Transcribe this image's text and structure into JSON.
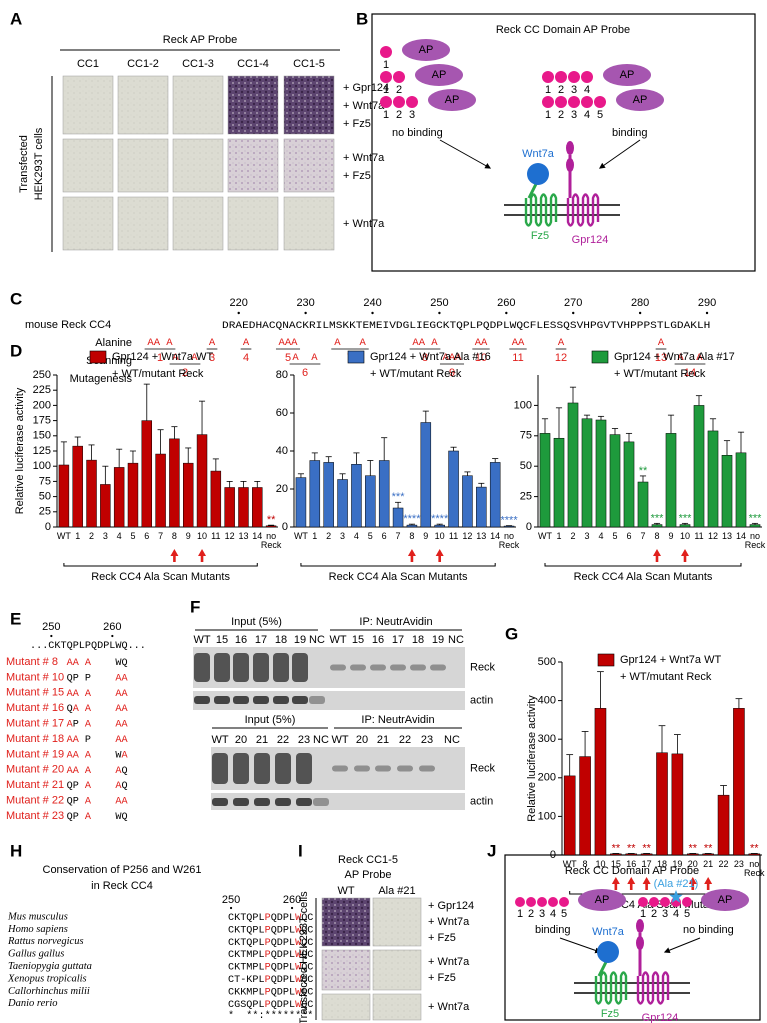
{
  "panel_labels": [
    "A",
    "B",
    "C",
    "D",
    "E",
    "F",
    "G",
    "H",
    "I",
    "J"
  ],
  "panel_a": {
    "title": "Reck AP Probe",
    "columns": [
      "CC1",
      "CC1-2",
      "CC1-3",
      "CC1-4",
      "CC1-5"
    ],
    "row_labels": [
      [
        "+ Gpr124",
        "+ Wnt7a",
        "+ Fz5"
      ],
      [
        "+ Wnt7a",
        "+ Fz5"
      ],
      [
        "+ Wnt7a"
      ]
    ],
    "side_label": [
      "Transfected",
      "HEK293T cells"
    ]
  },
  "panel_b": {
    "title": "Reck CC Domain AP Probe",
    "probe_label": "AP",
    "domains": [
      [
        "1"
      ],
      [
        "1",
        "2"
      ],
      [
        "1",
        "2",
        "3"
      ],
      [
        "1",
        "2",
        "3",
        "4"
      ],
      [
        "1",
        "2",
        "3",
        "4",
        "5"
      ]
    ],
    "no_binding": "no binding",
    "binding": "binding",
    "wnt7a": "Wnt7a",
    "fz5": "Fz5",
    "gpr124": "Gpr124"
  },
  "panel_c": {
    "label": "mouse Reck CC4",
    "ticks": [
      220,
      230,
      240,
      250,
      260,
      270,
      280,
      290
    ],
    "sequence": "DRAEDHACQNACKRILMSKKTEMEIVDGLIEGCKTQPLPQDPLWQCFLESSQSVHPGVTVHPPPSTLGDAKLH",
    "side_label": [
      "Alanine",
      "Scanning",
      "Mutagenesis"
    ],
    "mutants": [
      {
        "alanines": "AA A",
        "label": "1"
      },
      {
        "alanines": "A  A",
        "label": "2"
      },
      {
        "alanines": "A",
        "label": "3"
      },
      {
        "alanines": "A",
        "label": "4"
      },
      {
        "alanines": "AAA",
        "label": "5"
      },
      {
        "alanines": "A  A",
        "label": "6"
      },
      {
        "alanines": "A   A",
        "label": "7"
      },
      {
        "alanines": "AA A",
        "label": "8"
      },
      {
        "alanines": "AAA",
        "label": "9"
      },
      {
        "alanines": "AA",
        "label": "10"
      },
      {
        "alanines": "AA",
        "label": "11"
      },
      {
        "alanines": "A",
        "label": "12"
      },
      {
        "alanines": "A",
        "label": "13"
      },
      {
        "alanines": "A  A",
        "label": "14"
      }
    ]
  },
  "chart_data": [
    {
      "type": "bar",
      "categories": [
        "WT",
        "1",
        "2",
        "3",
        "4",
        "5",
        "6",
        "7",
        "8",
        "9",
        "10",
        "11",
        "12",
        "13",
        "14",
        "no Reck"
      ],
      "series": [
        {
          "name": "Gpr124 + Wnt7a WT",
          "color": "#c00000",
          "values": [
            102,
            133,
            110,
            70,
            98,
            105,
            175,
            120,
            145,
            105,
            152,
            92,
            65,
            65,
            65,
            2
          ],
          "errors": [
            38,
            15,
            25,
            30,
            30,
            20,
            60,
            40,
            20,
            25,
            55,
            20,
            10,
            10,
            10,
            1
          ]
        }
      ],
      "legend_note": "+ WT/mutant Reck",
      "ylabel": "Relative luciferase activity",
      "xlabel": "Reck CC4 Ala Scan Mutants",
      "ylim": [
        0,
        250
      ],
      "yticks": [
        0,
        25,
        50,
        75,
        100,
        125,
        150,
        175,
        200,
        225,
        250
      ],
      "annotations": [
        null,
        null,
        null,
        null,
        null,
        null,
        null,
        null,
        null,
        null,
        null,
        null,
        null,
        null,
        null,
        "**"
      ]
    },
    {
      "type": "bar",
      "categories": [
        "WT",
        "1",
        "2",
        "3",
        "4",
        "5",
        "6",
        "7",
        "8",
        "9",
        "10",
        "11",
        "12",
        "13",
        "14",
        "no Reck"
      ],
      "series": [
        {
          "name": "Gpr124 + Wnt7a Ala #16",
          "color": "#3a6fc4",
          "values": [
            26,
            35,
            34,
            25,
            33,
            27,
            35,
            10,
            1,
            55,
            1,
            40,
            27,
            21,
            34,
            0.5
          ],
          "errors": [
            2,
            4,
            3,
            3,
            6,
            8,
            12,
            3,
            0.5,
            6,
            0.5,
            2,
            2,
            2,
            2,
            0.2
          ]
        }
      ],
      "legend_note": "+ WT/mutant Reck",
      "xlabel": "Reck CC4 Ala Scan Mutants",
      "ylim": [
        0,
        80
      ],
      "yticks": [
        0,
        20,
        40,
        60,
        80
      ],
      "annotations": [
        null,
        null,
        null,
        null,
        null,
        null,
        null,
        "***",
        "****",
        null,
        "****",
        null,
        null,
        null,
        null,
        "****"
      ]
    },
    {
      "type": "bar",
      "categories": [
        "WT",
        "1",
        "2",
        "3",
        "4",
        "5",
        "6",
        "7",
        "8",
        "9",
        "10",
        "11",
        "12",
        "13",
        "14",
        "no Reck"
      ],
      "series": [
        {
          "name": "Gpr124 + Wnt7a Ala #17",
          "color": "#1e9a3c",
          "values": [
            77,
            73,
            102,
            89,
            88,
            76,
            70,
            37,
            2,
            77,
            2,
            100,
            79,
            59,
            61,
            2
          ],
          "errors": [
            12,
            25,
            13,
            3,
            3,
            5,
            7,
            5,
            1,
            15,
            1,
            8,
            10,
            12,
            17,
            1
          ]
        }
      ],
      "legend_note": "+ WT/mutant Reck",
      "xlabel": "Reck CC4 Ala Scan Mutants",
      "ylim": [
        0,
        125
      ],
      "yticks": [
        0,
        25,
        50,
        75,
        100
      ],
      "annotations": [
        null,
        null,
        null,
        null,
        null,
        null,
        null,
        "**",
        "***",
        null,
        "***",
        null,
        null,
        null,
        null,
        "***"
      ]
    },
    {
      "type": "bar",
      "categories": [
        "WT",
        "8",
        "10",
        "15",
        "16",
        "17",
        "18",
        "19",
        "20",
        "21",
        "22",
        "23",
        "no Reck"
      ],
      "series": [
        {
          "name": "Gpr124 + Wnt7a WT",
          "color": "#c00000",
          "values": [
            205,
            255,
            380,
            3,
            3,
            3,
            265,
            262,
            3,
            3,
            155,
            380,
            3
          ],
          "errors": [
            55,
            65,
            95,
            1,
            1,
            1,
            70,
            50,
            1,
            1,
            25,
            25,
            1
          ]
        }
      ],
      "legend_note": "+ WT/mutant Reck",
      "ylabel": "Relative luciferase activity",
      "xlabel": "Reck CC4 Ala Scan Mutants",
      "ylim": [
        0,
        500
      ],
      "yticks": [
        0,
        100,
        200,
        300,
        400,
        500
      ],
      "annotations": [
        null,
        null,
        null,
        "**",
        "**",
        "**",
        null,
        null,
        "**",
        "**",
        null,
        null,
        "**"
      ]
    }
  ],
  "panel_e": {
    "ticks": [
      250,
      260
    ],
    "sequence": "...CKTQPLPQDPLWQ...",
    "mutants": [
      {
        "name": "Mutant # 8",
        "left": "AA A",
        "right": "WQ"
      },
      {
        "name": "Mutant # 10",
        "left": "QP P",
        "right": "AA"
      },
      {
        "name": "Mutant # 15",
        "left": "AA A",
        "right": "AA"
      },
      {
        "name": "Mutant # 16",
        "left": "QA A",
        "right": "AA"
      },
      {
        "name": "Mutant # 17",
        "left": "AP A",
        "right": "AA"
      },
      {
        "name": "Mutant # 18",
        "left": "AA P",
        "right": "AA"
      },
      {
        "name": "Mutant # 19",
        "left": "AA A",
        "right": "WA"
      },
      {
        "name": "Mutant # 20",
        "left": "AA A",
        "right": "AQ"
      },
      {
        "name": "Mutant # 21",
        "left": "QP A",
        "right": "AQ"
      },
      {
        "name": "Mutant # 22",
        "left": "QP A",
        "right": "AA"
      },
      {
        "name": "Mutant # 23",
        "left": "QP A",
        "right": "WQ"
      }
    ]
  },
  "panel_f": {
    "blots": [
      {
        "groups": [
          "Input (5%)",
          "IP: NeutrAvidin"
        ],
        "input_lanes": [
          "WT",
          "15",
          "16",
          "17",
          "18",
          "19",
          "NC"
        ],
        "ip_lanes": [
          "WT",
          "15",
          "16",
          "17",
          "18",
          "19",
          "NC"
        ],
        "bands": [
          "Reck",
          "actin"
        ]
      },
      {
        "groups": [
          "Input (5%)",
          "IP: NeutrAvidin"
        ],
        "input_lanes": [
          "WT",
          "20",
          "21",
          "22",
          "23",
          "NC"
        ],
        "ip_lanes": [
          "WT",
          "20",
          "21",
          "22",
          "23",
          "NC"
        ],
        "bands": [
          "Reck",
          "actin"
        ]
      }
    ]
  },
  "panel_h": {
    "title": [
      "Conservation of P256 and W261",
      "in Reck CC4"
    ],
    "ticks": [
      250,
      260
    ],
    "species": [
      {
        "name": "Mus musculus",
        "sequence": "CKTQPLPQDPLWQC"
      },
      {
        "name": "Homo sapiens",
        "sequence": "CKTQPLPQDPLWQC"
      },
      {
        "name": "Rattus norvegicus",
        "sequence": "CKTQPLPQDPLWQC"
      },
      {
        "name": "Gallus gallus",
        "sequence": "CKTMPLPQDPLWQC"
      },
      {
        "name": "Taeniopygia guttata",
        "sequence": "CKTMPLPQDPLWQC"
      },
      {
        "name": "Xenopus tropicalis",
        "sequence": "CT-KPLPQDPLWQC"
      },
      {
        "name": "Callorhinchus milii",
        "sequence": "CKKMPLPQDPLWQC"
      },
      {
        "name": "Danio rerio",
        "sequence": "CGSQPLPQDPLWQC"
      }
    ],
    "consensus": "*  **:********"
  },
  "panel_i": {
    "title": [
      "Reck CC1-5",
      "AP Probe"
    ],
    "columns": [
      "WT",
      "Ala #21"
    ],
    "row_labels": [
      [
        "+ Gpr124",
        "+ Wnt7a",
        "+ Fz5"
      ],
      [
        "+ Wnt7a",
        "+ Fz5"
      ],
      [
        "+ Wnt7a"
      ]
    ],
    "side_label": "Transfected HEK293T cells"
  },
  "panel_j": {
    "title": "Reck CC Domain AP Probe",
    "probe_label": "AP",
    "domains": [
      "1",
      "2",
      "3",
      "4",
      "5"
    ],
    "mutation": "(Ala #21)",
    "binding": "binding",
    "no_binding": "no binding",
    "wnt7a": "Wnt7a",
    "fz5": "Fz5",
    "gpr124": "Gpr124"
  }
}
